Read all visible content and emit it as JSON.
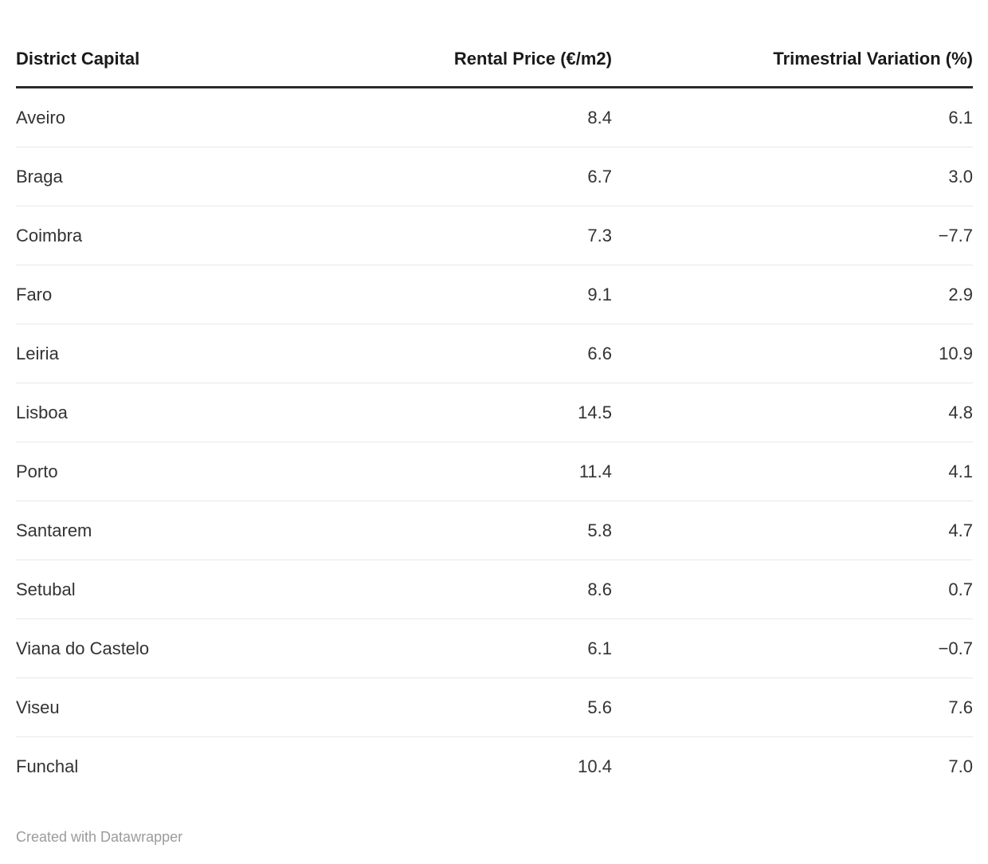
{
  "table": {
    "columns": [
      {
        "label": "District Capital",
        "align": "left"
      },
      {
        "label": "Rental Price (€/m2)",
        "align": "right"
      },
      {
        "label": "Trimestrial Variation (%)",
        "align": "right"
      }
    ],
    "rows": [
      [
        "Aveiro",
        "8.4",
        "6.1"
      ],
      [
        "Braga",
        "6.7",
        "3.0"
      ],
      [
        "Coimbra",
        "7.3",
        "−7.7"
      ],
      [
        "Faro",
        "9.1",
        "2.9"
      ],
      [
        "Leiria",
        "6.6",
        "10.9"
      ],
      [
        "Lisboa",
        "14.5",
        "4.8"
      ],
      [
        "Porto",
        "11.4",
        "4.1"
      ],
      [
        "Santarem",
        "5.8",
        "4.7"
      ],
      [
        "Setubal",
        "8.6",
        "0.7"
      ],
      [
        "Viana do Castelo",
        "6.1",
        "−0.7"
      ],
      [
        "Viseu",
        "5.6",
        "7.6"
      ],
      [
        "Funchal",
        "10.4",
        "7.0"
      ]
    ]
  },
  "footer": {
    "credit": "Created with Datawrapper"
  },
  "colors": {
    "header_text": "#1a1a1a",
    "body_text": "#333333",
    "header_rule": "#2b2b2b",
    "row_divider": "#e8e8e8",
    "credit_text": "#9b9b9b",
    "background": "#ffffff"
  },
  "chart_data": {
    "type": "table",
    "columns": [
      "District Capital",
      "Rental Price (€/m2)",
      "Trimestrial Variation (%)"
    ],
    "rows": [
      [
        "Aveiro",
        8.4,
        6.1
      ],
      [
        "Braga",
        6.7,
        3.0
      ],
      [
        "Coimbra",
        7.3,
        -7.7
      ],
      [
        "Faro",
        9.1,
        2.9
      ],
      [
        "Leiria",
        6.6,
        10.9
      ],
      [
        "Lisboa",
        14.5,
        4.8
      ],
      [
        "Porto",
        11.4,
        4.1
      ],
      [
        "Santarem",
        5.8,
        4.7
      ],
      [
        "Setubal",
        8.6,
        0.7
      ],
      [
        "Viana do Castelo",
        6.1,
        -0.7
      ],
      [
        "Viseu",
        5.6,
        7.6
      ],
      [
        "Funchal",
        10.4,
        7.0
      ]
    ],
    "title": "",
    "legend": "none",
    "notes": "numeric columns right-aligned; no bottom rule under last row"
  }
}
